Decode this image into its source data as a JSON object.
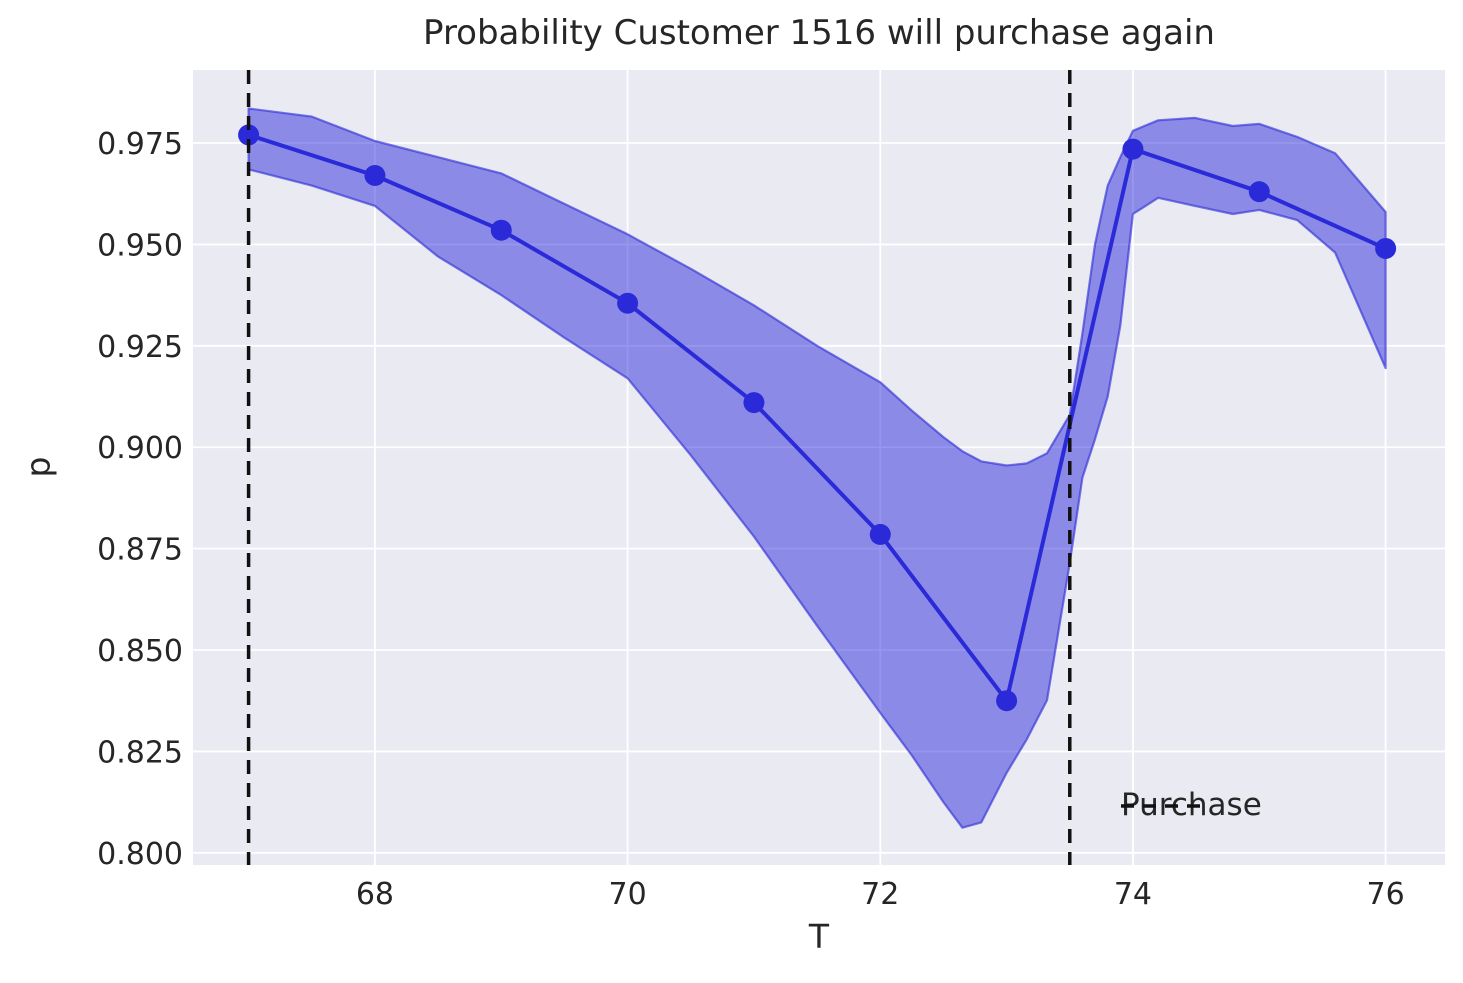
{
  "chart_data": {
    "type": "line",
    "title": "Probability Customer 1516 will purchase again",
    "xlabel": "T",
    "ylabel": "p",
    "x": [
      67,
      68,
      69,
      70,
      71,
      72,
      73,
      74,
      75,
      76
    ],
    "values": [
      0.977,
      0.967,
      0.9535,
      0.9355,
      0.911,
      0.8785,
      0.8375,
      0.9735,
      0.963,
      0.949
    ],
    "band": {
      "x": [
        67,
        67.5,
        68,
        68.5,
        69,
        69.5,
        70,
        70.5,
        71,
        71.5,
        72,
        72.25,
        72.5,
        72.65,
        72.8,
        73,
        73.16,
        73.32,
        73.5,
        73.6,
        73.7,
        73.8,
        73.9,
        74,
        74.2,
        74.49,
        74.79,
        75,
        75.3,
        75.6,
        76
      ],
      "upper": [
        0.9835,
        0.9815,
        0.9755,
        0.9715,
        0.9675,
        0.96,
        0.9525,
        0.944,
        0.935,
        0.925,
        0.916,
        0.909,
        0.9025,
        0.899,
        0.8965,
        0.8955,
        0.896,
        0.8985,
        0.908,
        0.928,
        0.95,
        0.9645,
        0.9715,
        0.978,
        0.9806,
        0.9812,
        0.9792,
        0.9797,
        0.9765,
        0.9725,
        0.958
      ],
      "lower": [
        0.9685,
        0.9645,
        0.9595,
        0.947,
        0.9375,
        0.927,
        0.917,
        0.898,
        0.878,
        0.856,
        0.8345,
        0.824,
        0.8125,
        0.8062,
        0.8075,
        0.8197,
        0.828,
        0.8376,
        0.8715,
        0.8925,
        0.902,
        0.9125,
        0.93,
        0.9575,
        0.9615,
        0.9595,
        0.9575,
        0.9585,
        0.956,
        0.948,
        0.9195
      ]
    },
    "vlines": {
      "x": [
        67,
        73.5
      ],
      "label": "Purchase",
      "style": "dashed"
    },
    "xticks": {
      "values": [
        68,
        70,
        72,
        74,
        76
      ],
      "labels": [
        "68",
        "70",
        "72",
        "74",
        "76"
      ]
    },
    "yticks": {
      "values": [
        0.8,
        0.825,
        0.85,
        0.875,
        0.9,
        0.925,
        0.95,
        0.975
      ],
      "labels": [
        "0.800",
        "0.825",
        "0.850",
        "0.875",
        "0.900",
        "0.925",
        "0.950",
        "0.975"
      ]
    },
    "xlim": [
      66.56,
      76.47
    ],
    "ylim": [
      0.797,
      0.993
    ],
    "grid": true,
    "marker": "o",
    "legend": {
      "label": "Purchase",
      "position": "lower right"
    },
    "colors": {
      "line": "#2a2ad8",
      "band_fill": "rgba(40,40,221,0.49)",
      "band_edge": "rgba(50,50,215,0.65)",
      "vline": "#111111",
      "plot_background": "#eaeaf2",
      "figure_background": "#ffffff",
      "grid": "#ffffff",
      "text": "#262626"
    }
  }
}
